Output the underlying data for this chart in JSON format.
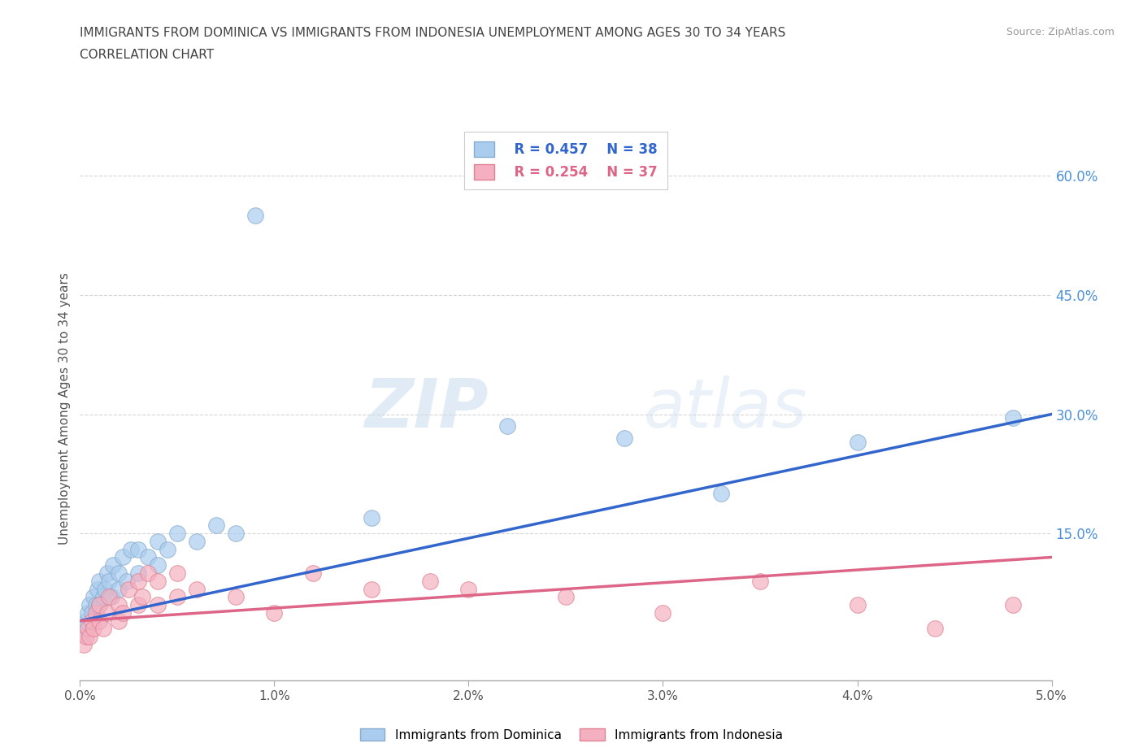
{
  "title_line1": "IMMIGRANTS FROM DOMINICA VS IMMIGRANTS FROM INDONESIA UNEMPLOYMENT AMONG AGES 30 TO 34 YEARS",
  "title_line2": "CORRELATION CHART",
  "source_text": "Source: ZipAtlas.com",
  "ylabel": "Unemployment Among Ages 30 to 34 years",
  "xlim": [
    0.0,
    0.05
  ],
  "ylim": [
    -0.035,
    0.65
  ],
  "xticks": [
    0.0,
    0.01,
    0.02,
    0.03,
    0.04,
    0.05
  ],
  "xticklabels": [
    "0.0%",
    "1.0%",
    "2.0%",
    "3.0%",
    "4.0%",
    "5.0%"
  ],
  "yticks_right": [
    0.15,
    0.3,
    0.45,
    0.6
  ],
  "ytick_labels_right": [
    "15.0%",
    "30.0%",
    "45.0%",
    "60.0%"
  ],
  "grid_color": "#cccccc",
  "background_color": "#ffffff",
  "dominica_color": "#aaccee",
  "dominica_edge": "#88aacc",
  "indonesia_color": "#f4b0c0",
  "indonesia_edge": "#e08090",
  "dominica_line_color": "#3366cc",
  "indonesia_line_color": "#dd6688",
  "legend_R1": "R = 0.457",
  "legend_N1": "N = 38",
  "legend_R2": "R = 0.254",
  "legend_N2": "N = 37",
  "legend_label1": "Immigrants from Dominica",
  "legend_label2": "Immigrants from Indonesia",
  "watermark_zip": "ZIP",
  "watermark_atlas": "atlas",
  "title_color": "#444444",
  "tick_color": "#555555",
  "right_tick_color": "#4a90d9",
  "dominica_x": [
    0.0002,
    0.0003,
    0.0004,
    0.0005,
    0.0006,
    0.0007,
    0.0008,
    0.0009,
    0.001,
    0.001,
    0.0012,
    0.0013,
    0.0014,
    0.0015,
    0.0016,
    0.0017,
    0.002,
    0.002,
    0.0022,
    0.0024,
    0.0026,
    0.003,
    0.003,
    0.0035,
    0.004,
    0.004,
    0.0045,
    0.005,
    0.006,
    0.007,
    0.008,
    0.009,
    0.015,
    0.022,
    0.028,
    0.033,
    0.04,
    0.048
  ],
  "dominica_y": [
    0.03,
    0.04,
    0.05,
    0.06,
    0.05,
    0.07,
    0.06,
    0.08,
    0.06,
    0.09,
    0.07,
    0.08,
    0.1,
    0.09,
    0.07,
    0.11,
    0.08,
    0.1,
    0.12,
    0.09,
    0.13,
    0.1,
    0.13,
    0.12,
    0.11,
    0.14,
    0.13,
    0.15,
    0.14,
    0.16,
    0.15,
    0.55,
    0.17,
    0.285,
    0.27,
    0.2,
    0.265,
    0.295
  ],
  "indonesia_x": [
    0.0002,
    0.0003,
    0.0004,
    0.0005,
    0.0006,
    0.0007,
    0.0008,
    0.001,
    0.001,
    0.0012,
    0.0014,
    0.0015,
    0.002,
    0.002,
    0.0022,
    0.0025,
    0.003,
    0.003,
    0.0032,
    0.0035,
    0.004,
    0.004,
    0.005,
    0.005,
    0.006,
    0.008,
    0.01,
    0.012,
    0.015,
    0.018,
    0.02,
    0.025,
    0.03,
    0.035,
    0.04,
    0.044,
    0.048
  ],
  "indonesia_y": [
    0.01,
    0.02,
    0.03,
    0.02,
    0.04,
    0.03,
    0.05,
    0.04,
    0.06,
    0.03,
    0.05,
    0.07,
    0.04,
    0.06,
    0.05,
    0.08,
    0.06,
    0.09,
    0.07,
    0.1,
    0.06,
    0.09,
    0.07,
    0.1,
    0.08,
    0.07,
    0.05,
    0.1,
    0.08,
    0.09,
    0.08,
    0.07,
    0.05,
    0.09,
    0.06,
    0.03,
    0.06
  ]
}
